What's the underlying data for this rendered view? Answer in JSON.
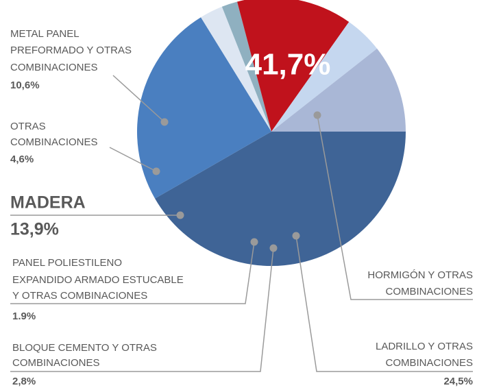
{
  "chart_data": {
    "type": "pie",
    "categories": [
      [
        "HORMIGÓN Y OTRAS",
        "COMBINACIONES"
      ],
      [
        "LADRILLO Y OTRAS",
        "COMBINACIONES"
      ],
      [
        "BLOQUE CEMENTO Y OTRAS",
        "COMBINACIONES"
      ],
      [
        "PANEL POLIESTILENO",
        "EXPANDIDO ARMADO ESTUCABLE",
        "Y OTRAS COMBINACIONES"
      ],
      [
        "MADERA"
      ],
      [
        "OTRAS",
        "COMBINACIONES"
      ],
      [
        "METAL PANEL",
        "PREFORMADO Y OTRAS",
        "COMBINACIONES"
      ]
    ],
    "values": [
      41.7,
      24.5,
      2.8,
      1.9,
      13.9,
      4.6,
      10.6
    ],
    "value_labels": [
      "41,7%",
      "24,5%",
      "2,8%",
      "1.9%",
      "13,9%",
      "4,6%",
      "10,6%"
    ],
    "colors": [
      "#3f6496",
      "#4a7fc0",
      "#dde6f2",
      "#8fb0c0",
      "#c0121c",
      "#c5d7ef",
      "#a9b7d6"
    ]
  }
}
